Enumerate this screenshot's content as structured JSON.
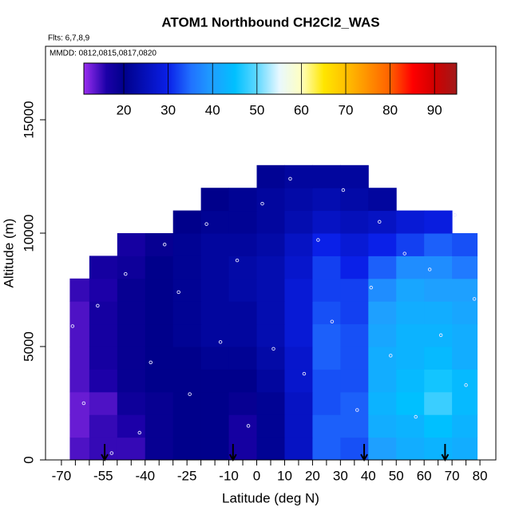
{
  "chart_data": {
    "type": "heatmap",
    "title": "ATOM1 Northbound CH2Cl2_WAS",
    "annotations": [
      "Flts: 6,7,8,9",
      "MMDD: 0812,0815,0817,0820"
    ],
    "xlabel": "Latitude (deg N)",
    "ylabel": "Altitude (m)",
    "xlim": [
      -75.7,
      85.7
    ],
    "ylim": [
      0,
      18240
    ],
    "xticks": [
      -70,
      -55,
      -40,
      -25,
      -10,
      0,
      10,
      20,
      30,
      40,
      50,
      60,
      70,
      80
    ],
    "xminorticks": [
      -65,
      -60,
      -50,
      -45,
      -35,
      -30,
      -20,
      -15,
      -5,
      5,
      15,
      25,
      35,
      45,
      55,
      65,
      75
    ],
    "yticks": [
      0,
      5000,
      10000,
      15000
    ],
    "x_edges": [
      -67,
      -60,
      -50,
      -40,
      -30,
      -20,
      -10,
      0,
      10,
      20,
      30,
      40,
      50,
      60,
      70,
      79
    ],
    "y_edges": [
      0,
      1000,
      2000,
      3000,
      4000,
      5000,
      6000,
      7000,
      8000,
      9000,
      10000,
      11000,
      12000,
      13000
    ],
    "values": [
      [
        14,
        15,
        15,
        19,
        20,
        20,
        17,
        21,
        26,
        34,
        33,
        40,
        42,
        43,
        42
      ],
      [
        13,
        15,
        16,
        19,
        20,
        20,
        17,
        21,
        26,
        34,
        34,
        42,
        43,
        45,
        43
      ],
      [
        13,
        14,
        18,
        19,
        20,
        20,
        19,
        21,
        26,
        33,
        34,
        43,
        45,
        48,
        44
      ],
      [
        14,
        16,
        19,
        20,
        20,
        20,
        20,
        22,
        27,
        33,
        33,
        42,
        44,
        46,
        44
      ],
      [
        14,
        17,
        19,
        20,
        20,
        21,
        21,
        23,
        27,
        34,
        33,
        42,
        43,
        44,
        42
      ],
      [
        14,
        17,
        19,
        20,
        21,
        22,
        22,
        24,
        28,
        34,
        33,
        41,
        43,
        43,
        42
      ],
      [
        14,
        17,
        19,
        20,
        21,
        22,
        22,
        24,
        28,
        33,
        32,
        40,
        42,
        42,
        41
      ],
      [
        15,
        16,
        19,
        20,
        21,
        22,
        23,
        24,
        28,
        32,
        32,
        38,
        41,
        40,
        40
      ],
      [
        null,
        17,
        18,
        20,
        21,
        22,
        23,
        24,
        27,
        32,
        30,
        34,
        38,
        38,
        36
      ],
      [
        null,
        null,
        17,
        19,
        21,
        22,
        22,
        23,
        26,
        30,
        28,
        30,
        32,
        34,
        33
      ],
      [
        null,
        null,
        null,
        null,
        20,
        21,
        21,
        22,
        24,
        26,
        25,
        26,
        28,
        29,
        null
      ],
      [
        null,
        null,
        null,
        null,
        null,
        20,
        21,
        22,
        23,
        24,
        23,
        22,
        null,
        null,
        null
      ],
      [
        null,
        null,
        null,
        null,
        null,
        null,
        null,
        21,
        22,
        22,
        22,
        null,
        null,
        null,
        null
      ]
    ],
    "clim": [
      11,
      95
    ],
    "cticks": [
      20,
      30,
      40,
      50,
      60,
      70,
      80,
      90
    ],
    "colorscale": [
      [
        11,
        "#9a2ef0"
      ],
      [
        16,
        "#1c00a8"
      ],
      [
        20,
        "#00008b"
      ],
      [
        30,
        "#0a20e8"
      ],
      [
        35,
        "#2070ff"
      ],
      [
        40,
        "#1ea0ff"
      ],
      [
        45,
        "#00c0ff"
      ],
      [
        50,
        "#60d8ff"
      ],
      [
        55,
        "#e8f8ff"
      ],
      [
        60,
        "#ffffc0"
      ],
      [
        65,
        "#ffe600"
      ],
      [
        70,
        "#ffc000"
      ],
      [
        75,
        "#ff9000"
      ],
      [
        80,
        "#ff6000"
      ],
      [
        85,
        "#ff0000"
      ],
      [
        90,
        "#d00000"
      ],
      [
        95,
        "#a01a1a"
      ]
    ],
    "samples": {
      "x": [
        -66,
        -62,
        -57,
        -52,
        -47,
        -42,
        -38,
        -33,
        -28,
        -24,
        -18,
        -13,
        -7,
        -3,
        2,
        6,
        12,
        17,
        22,
        27,
        31,
        36,
        41,
        44,
        48,
        53,
        57,
        62,
        66,
        71,
        75,
        78
      ],
      "y": [
        5900,
        2500,
        6800,
        300,
        8200,
        1200,
        4300,
        9500,
        7400,
        2900,
        10400,
        5200,
        8800,
        1500,
        11300,
        4900,
        12400,
        3800,
        9700,
        6100,
        11900,
        2200,
        7600,
        10500,
        4600,
        9100,
        1900,
        8400,
        5500,
        10800,
        3300,
        7100
      ]
    },
    "arrows_x": [
      -54.5,
      -8.5,
      38.5,
      67.5
    ]
  }
}
